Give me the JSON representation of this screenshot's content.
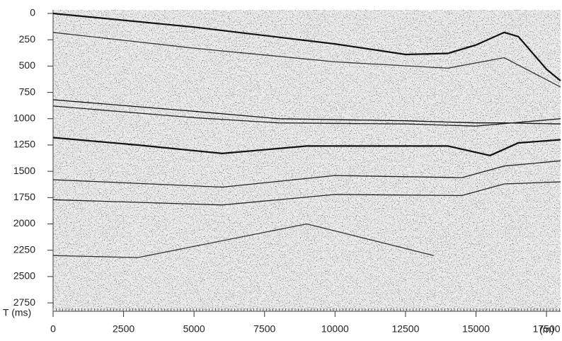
{
  "chart_data": {
    "type": "seismic",
    "x_label": "(m)",
    "y_label": "T (ms)",
    "xlim": [
      0,
      18000
    ],
    "xticks": [
      0,
      2500,
      5000,
      7500,
      10000,
      12500,
      15000,
      17500
    ],
    "ylim": [
      2830,
      0
    ],
    "yticks": [
      0,
      250,
      500,
      750,
      1000,
      1250,
      1500,
      1750,
      2000,
      2250,
      2500,
      2750
    ],
    "grid": false,
    "series": [
      {
        "color": "#111111",
        "x": [
          0,
          5000,
          10000,
          12500,
          14000,
          15000,
          16000,
          16500,
          17500,
          18000
        ],
        "values": [
          0,
          130,
          290,
          390,
          380,
          300,
          180,
          220,
          530,
          640
        ]
      },
      {
        "color": "#333333",
        "x": [
          0,
          5000,
          10000,
          14000,
          16000,
          18000
        ],
        "values": [
          180,
          330,
          460,
          520,
          420,
          700
        ]
      },
      {
        "color": "#111111",
        "x": [
          0,
          5000,
          8000,
          12500,
          15000,
          16000,
          18000
        ],
        "values": [
          820,
          930,
          1000,
          1020,
          1040,
          1040,
          1050
        ]
      },
      {
        "color": "#222222",
        "x": [
          0,
          5000,
          8000,
          12500,
          15000,
          18000
        ],
        "values": [
          880,
          990,
          1040,
          1050,
          1070,
          1000
        ]
      },
      {
        "color": "#111111",
        "x": [
          0,
          3000,
          6000,
          9000,
          14000,
          15500,
          16500,
          18000
        ],
        "values": [
          1180,
          1250,
          1330,
          1260,
          1260,
          1350,
          1230,
          1200
        ]
      },
      {
        "color": "#222222",
        "x": [
          0,
          6000,
          10000,
          14500,
          16000,
          18000
        ],
        "values": [
          1580,
          1650,
          1540,
          1560,
          1450,
          1400
        ]
      },
      {
        "color": "#222222",
        "x": [
          0,
          6000,
          10000,
          14500,
          16000,
          18000
        ],
        "values": [
          1770,
          1820,
          1720,
          1730,
          1620,
          1600
        ]
      },
      {
        "color": "#333333",
        "x": [
          0,
          3000,
          9000,
          13500
        ],
        "values": [
          2300,
          2320,
          2000,
          2300
        ]
      }
    ]
  }
}
